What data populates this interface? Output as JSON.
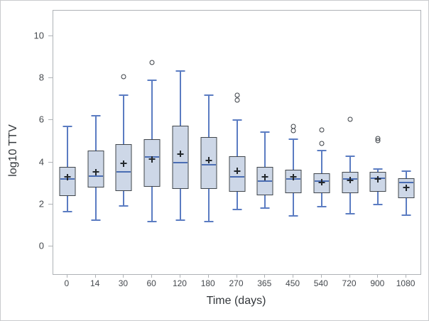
{
  "figure": {
    "background": "#ffffff",
    "outer_border_color": "#c9cbcd",
    "frame_color": "#aeb2b6"
  },
  "chart_data": {
    "type": "boxplot",
    "title": "",
    "xlabel": "Time (days)",
    "ylabel": "log10 TTV",
    "categories": [
      "0",
      "14",
      "30",
      "60",
      "120",
      "180",
      "270",
      "365",
      "450",
      "540",
      "720",
      "900",
      "1080"
    ],
    "y_ticks": [
      0,
      2,
      4,
      6,
      8,
      10
    ],
    "y_range": [
      -1.3,
      11.2
    ],
    "grid": false,
    "legend": "none",
    "series": [
      {
        "time": "0",
        "low": 1.65,
        "q1": 2.4,
        "median": 3.2,
        "q3": 3.8,
        "high": 5.7,
        "mean": 3.3,
        "outliers": []
      },
      {
        "time": "14",
        "low": 1.25,
        "q1": 2.8,
        "median": 3.35,
        "q3": 4.55,
        "high": 6.2,
        "mean": 3.55,
        "outliers": []
      },
      {
        "time": "30",
        "low": 1.95,
        "q1": 2.65,
        "median": 3.55,
        "q3": 4.85,
        "high": 7.2,
        "mean": 3.95,
        "outliers": [
          8.05
        ]
      },
      {
        "time": "60",
        "low": 1.2,
        "q1": 2.85,
        "median": 4.25,
        "q3": 5.1,
        "high": 7.9,
        "mean": 4.15,
        "outliers": [
          8.75
        ]
      },
      {
        "time": "120",
        "low": 1.25,
        "q1": 2.75,
        "median": 4.0,
        "q3": 5.75,
        "high": 8.35,
        "mean": 4.4,
        "outliers": []
      },
      {
        "time": "180",
        "low": 1.2,
        "q1": 2.75,
        "median": 3.9,
        "q3": 5.2,
        "high": 7.2,
        "mean": 4.1,
        "outliers": []
      },
      {
        "time": "270",
        "low": 1.75,
        "q1": 2.6,
        "median": 3.3,
        "q3": 4.3,
        "high": 6.0,
        "mean": 3.6,
        "outliers": [
          7.2,
          6.95
        ]
      },
      {
        "time": "365",
        "low": 1.85,
        "q1": 2.45,
        "median": 3.1,
        "q3": 3.8,
        "high": 5.45,
        "mean": 3.3,
        "outliers": []
      },
      {
        "time": "450",
        "low": 1.45,
        "q1": 2.55,
        "median": 3.2,
        "q3": 3.65,
        "high": 5.1,
        "mean": 3.3,
        "outliers": [
          5.7,
          5.5
        ]
      },
      {
        "time": "540",
        "low": 1.9,
        "q1": 2.55,
        "median": 3.1,
        "q3": 3.5,
        "high": 4.55,
        "mean": 3.05,
        "outliers": [
          5.55,
          4.9
        ]
      },
      {
        "time": "720",
        "low": 1.55,
        "q1": 2.55,
        "median": 3.2,
        "q3": 3.55,
        "high": 4.3,
        "mean": 3.15,
        "outliers": [
          6.05
        ]
      },
      {
        "time": "900",
        "low": 2.0,
        "q1": 2.6,
        "median": 3.25,
        "q3": 3.55,
        "high": 3.7,
        "mean": 3.2,
        "outliers": [
          5.15,
          5.05
        ]
      },
      {
        "time": "1080",
        "low": 1.5,
        "q1": 2.3,
        "median": 3.05,
        "q3": 3.25,
        "high": 3.6,
        "mean": 2.8,
        "outliers": []
      }
    ],
    "colors": {
      "box_fill": "#cdd7e7",
      "box_border": "#3f444a",
      "median": "#4a6db3",
      "whisker": "#5b7cc2",
      "mean_marker": "#23282c",
      "outlier": "#393e44",
      "tick_label": "#45494e",
      "axis_title": "#33373b"
    }
  }
}
